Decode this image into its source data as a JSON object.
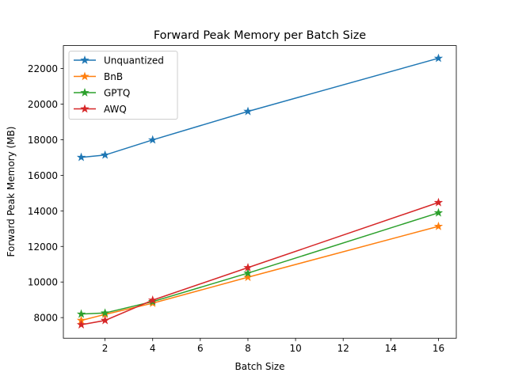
{
  "chart_data": {
    "type": "line",
    "title": "Forward Peak Memory per Batch Size",
    "xlabel": "Batch Size",
    "ylabel": "Forward Peak Memory (MB)",
    "xlim": [
      0.25,
      16.75
    ],
    "ylim": [
      6840,
      23290
    ],
    "xticks": [
      2,
      4,
      6,
      8,
      10,
      12,
      14,
      16
    ],
    "yticks": [
      8000,
      10000,
      12000,
      14000,
      16000,
      18000,
      20000,
      22000
    ],
    "grid": false,
    "legend_position": "top-left",
    "marker": "star",
    "x": [
      1,
      2,
      4,
      8,
      16
    ],
    "series": [
      {
        "name": "Unquantized",
        "color": "#1f77b4",
        "values": [
          17010,
          17140,
          17990,
          19590,
          22580
        ]
      },
      {
        "name": "BnB",
        "color": "#ff7f0e",
        "values": [
          7840,
          8180,
          8810,
          10270,
          13130
        ]
      },
      {
        "name": "GPTQ",
        "color": "#2ca02c",
        "values": [
          8200,
          8260,
          8900,
          10500,
          13890
        ]
      },
      {
        "name": "AWQ",
        "color": "#d62728",
        "values": [
          7600,
          7840,
          8980,
          10810,
          14470
        ]
      }
    ]
  }
}
